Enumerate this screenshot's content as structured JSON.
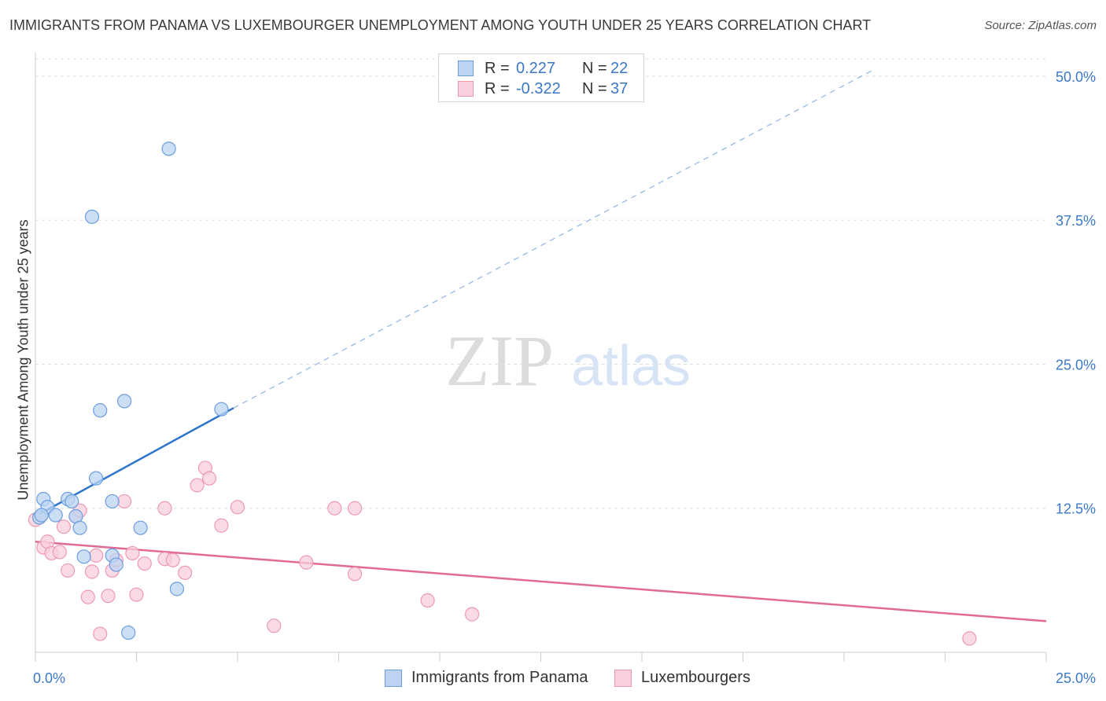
{
  "title": "IMMIGRANTS FROM PANAMA VS LUXEMBOURGER UNEMPLOYMENT AMONG YOUTH UNDER 25 YEARS CORRELATION CHART",
  "source": "Source: ZipAtlas.com",
  "watermark": {
    "zip": "ZIP",
    "atlas": "atlas"
  },
  "legend_top": [
    {
      "r_label": "R =",
      "r_value": "0.227",
      "n_label": "N =",
      "n_value": "22"
    },
    {
      "r_label": "R =",
      "r_value": "-0.322",
      "n_label": "N =",
      "n_value": "37"
    }
  ],
  "chart_data": {
    "type": "scatter",
    "title": "IMMIGRANTS FROM PANAMA VS LUXEMBOURGER UNEMPLOYMENT AMONG YOUTH UNDER 25 YEARS CORRELATION CHART",
    "xlabel": "",
    "ylabel": "Unemployment Among Youth under 25 years",
    "xlim": [
      0,
      25
    ],
    "ylim": [
      0,
      51.5
    ],
    "x_tick_labels": [
      "0.0%",
      "25.0%"
    ],
    "y_ticks": [
      12.5,
      25.0,
      37.5,
      50.0
    ],
    "y_tick_labels": [
      "12.5%",
      "25.0%",
      "37.5%",
      "50.0%"
    ],
    "grid": true,
    "legend_position": "bottom",
    "colors": {
      "panama": "#6a9ee0",
      "panama_fill": "#bcd4f2",
      "panama_line": "#2f75cc",
      "lux": "#ee99b4",
      "lux_fill": "#f8cfdc",
      "lux_line": "#e06a95"
    },
    "series": [
      {
        "name": "Immigrants from Panama",
        "r": 0.227,
        "n": 22,
        "points": [
          [
            0.1,
            11.7
          ],
          [
            0.2,
            13.3
          ],
          [
            0.3,
            12.6
          ],
          [
            0.5,
            11.9
          ],
          [
            0.8,
            13.3
          ],
          [
            0.9,
            13.1
          ],
          [
            1.0,
            11.8
          ],
          [
            1.1,
            10.8
          ],
          [
            1.2,
            8.3
          ],
          [
            1.4,
            37.8
          ],
          [
            1.5,
            15.1
          ],
          [
            1.6,
            21.0
          ],
          [
            1.9,
            8.4
          ],
          [
            1.9,
            13.1
          ],
          [
            2.0,
            7.6
          ],
          [
            2.2,
            21.8
          ],
          [
            2.3,
            1.7
          ],
          [
            2.6,
            10.8
          ],
          [
            3.3,
            43.7
          ],
          [
            3.5,
            5.5
          ],
          [
            4.6,
            21.1
          ],
          [
            0.15,
            11.9
          ]
        ],
        "trend": {
          "x0": 0.0,
          "y0": 11.8,
          "x1": 4.9,
          "y1": 21.2,
          "dash_x1": 20.7,
          "dash_y1": 50.5
        }
      },
      {
        "name": "Luxembourgers",
        "r": -0.322,
        "n": 37,
        "points": [
          [
            0.0,
            11.5
          ],
          [
            0.2,
            9.1
          ],
          [
            0.3,
            9.6
          ],
          [
            0.4,
            8.6
          ],
          [
            0.6,
            8.7
          ],
          [
            0.7,
            10.9
          ],
          [
            0.8,
            7.1
          ],
          [
            1.0,
            11.8
          ],
          [
            1.1,
            12.3
          ],
          [
            1.3,
            4.8
          ],
          [
            1.4,
            7.0
          ],
          [
            1.5,
            8.4
          ],
          [
            1.6,
            1.6
          ],
          [
            1.8,
            4.9
          ],
          [
            1.9,
            7.1
          ],
          [
            2.0,
            8.0
          ],
          [
            2.2,
            13.1
          ],
          [
            2.4,
            8.6
          ],
          [
            2.5,
            5.0
          ],
          [
            2.7,
            7.7
          ],
          [
            3.2,
            8.1
          ],
          [
            3.2,
            12.5
          ],
          [
            3.4,
            8.0
          ],
          [
            3.7,
            6.9
          ],
          [
            4.0,
            14.5
          ],
          [
            4.2,
            16.0
          ],
          [
            4.3,
            15.1
          ],
          [
            4.6,
            11.0
          ],
          [
            5.0,
            12.6
          ],
          [
            5.9,
            2.3
          ],
          [
            6.7,
            7.8
          ],
          [
            7.4,
            12.5
          ],
          [
            7.9,
            6.8
          ],
          [
            7.9,
            12.5
          ],
          [
            9.7,
            4.5
          ],
          [
            10.8,
            3.3
          ],
          [
            23.1,
            1.2
          ]
        ],
        "trend": {
          "x0": 0.0,
          "y0": 9.6,
          "x1": 25.0,
          "y1": 2.7
        }
      }
    ]
  }
}
